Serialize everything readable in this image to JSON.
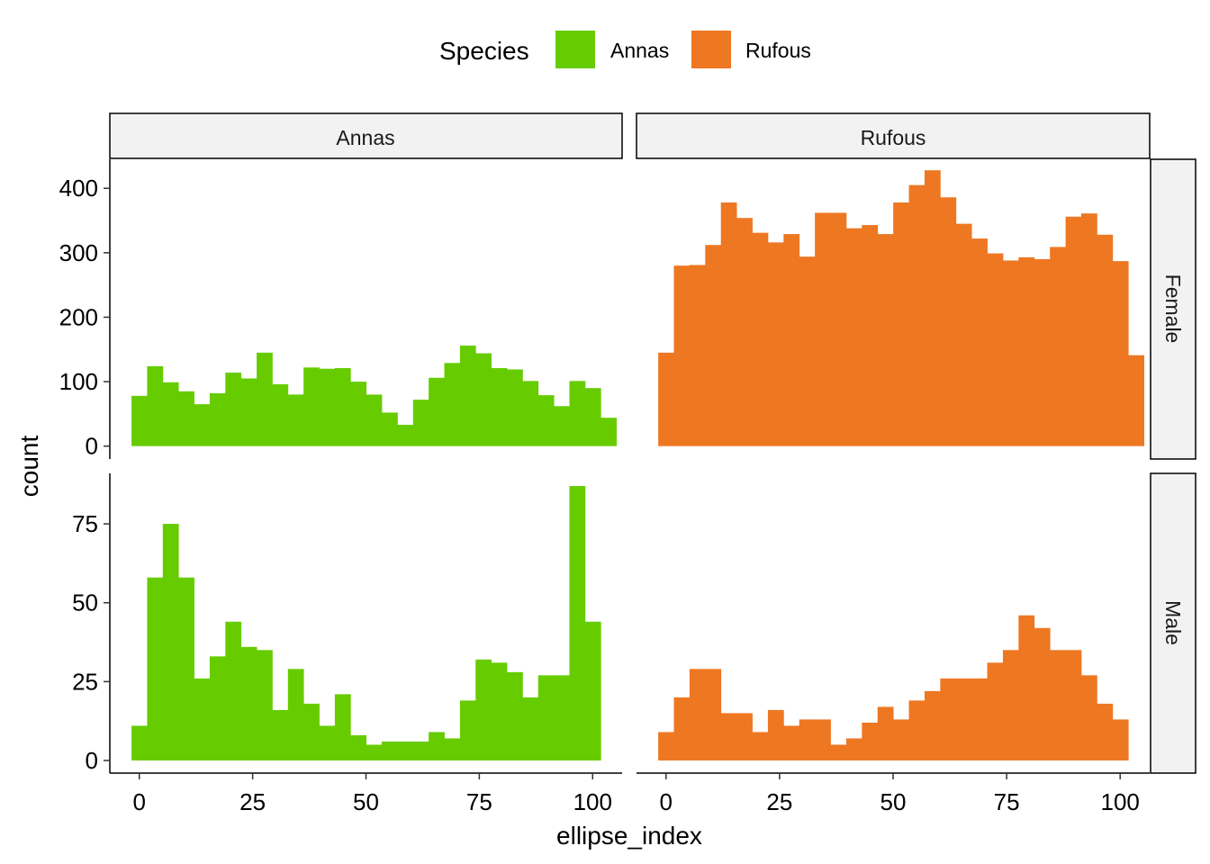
{
  "chart_data": {
    "type": "bar",
    "xlabel": "ellipse_index",
    "ylabel": "count",
    "legend": {
      "title": "Species",
      "placement": "top",
      "entries": [
        {
          "name": "Annas",
          "color": "#66CC00"
        },
        {
          "name": "Rufous",
          "color": "#EE7722"
        }
      ]
    },
    "column_facets": [
      "Annas",
      "Rufous"
    ],
    "row_facets": [
      "Female",
      "Male"
    ],
    "xlim": [
      -6.5,
      106.5
    ],
    "x_ticks": [
      0,
      25,
      50,
      75,
      100
    ],
    "bin_start": -1.72,
    "bin_width": 3.45,
    "grid": false,
    "rows": [
      {
        "name": "Female",
        "ylim": [
          -20,
          445
        ],
        "y_ticks": [
          0,
          100,
          200,
          300,
          400
        ],
        "panels": [
          {
            "species": "Annas",
            "values": [
              78,
              124,
              99,
              85,
              65,
              82,
              114,
              105,
              145,
              96,
              80,
              122,
              120,
              121,
              100,
              80,
              52,
              33,
              72,
              106,
              129,
              156,
              144,
              121,
              119,
              101,
              79,
              62,
              101,
              90,
              44
            ]
          },
          {
            "species": "Rufous",
            "values": [
              145,
              280,
              281,
              312,
              378,
              354,
              331,
              316,
              329,
              294,
              362,
              362,
              338,
              343,
              329,
              378,
              405,
              428,
              386,
              345,
              322,
              299,
              288,
              293,
              290,
              309,
              356,
              361,
              328,
              287,
              141
            ]
          }
        ]
      },
      {
        "name": "Male",
        "ylim": [
          -4,
          91
        ],
        "y_ticks": [
          0,
          25,
          50,
          75
        ],
        "panels": [
          {
            "species": "Annas",
            "values": [
              11,
              58,
              75,
              58,
              26,
              33,
              44,
              36,
              35,
              16,
              29,
              18,
              11,
              21,
              8,
              5,
              6,
              6,
              6,
              9,
              7,
              19,
              32,
              31,
              28,
              20,
              27,
              27,
              87,
              44
            ]
          },
          {
            "species": "Rufous",
            "values": [
              9,
              20,
              29,
              29,
              15,
              15,
              9,
              16,
              11,
              13,
              13,
              5,
              7,
              12,
              17,
              13,
              19,
              22,
              26,
              26,
              26,
              31,
              35,
              46,
              42,
              35,
              35,
              27,
              18,
              13
            ]
          }
        ]
      }
    ]
  }
}
